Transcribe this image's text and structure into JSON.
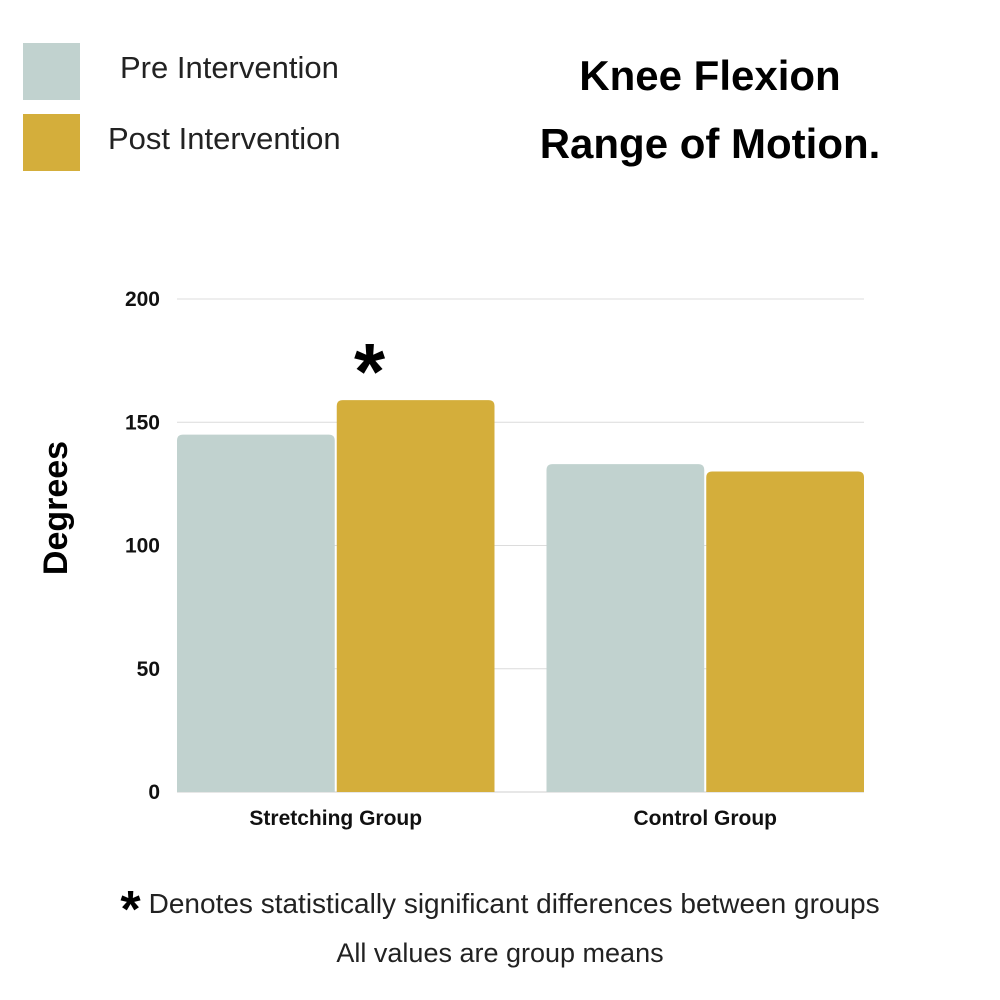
{
  "legend": {
    "items": [
      {
        "label": "Pre Intervention",
        "color": "#c1d2cf"
      },
      {
        "label": "Post Intervention",
        "color": "#d4ae3b"
      }
    ]
  },
  "title": {
    "line1": "Knee Flexion",
    "line2": "Range of Motion."
  },
  "chart_data": {
    "type": "bar",
    "categories": [
      "Stretching Group",
      "Control Group"
    ],
    "series": [
      {
        "name": "Pre Intervention",
        "values": [
          145,
          133
        ],
        "color": "#c1d2cf"
      },
      {
        "name": "Post Intervention",
        "values": [
          159,
          130
        ],
        "color": "#d4ae3b"
      }
    ],
    "ylabel": "Degrees",
    "xlabel": "",
    "ylim": [
      0,
      200
    ],
    "yticks": [
      0,
      50,
      100,
      150,
      200
    ],
    "grid": true,
    "legend_position": "top-left",
    "annotations": [
      {
        "category": "Stretching Group",
        "series": "Post Intervention",
        "text": "*"
      }
    ]
  },
  "footnotes": {
    "star": "*",
    "significance": "Denotes statistically significant differences between groups",
    "means_note": "All values are group means"
  }
}
